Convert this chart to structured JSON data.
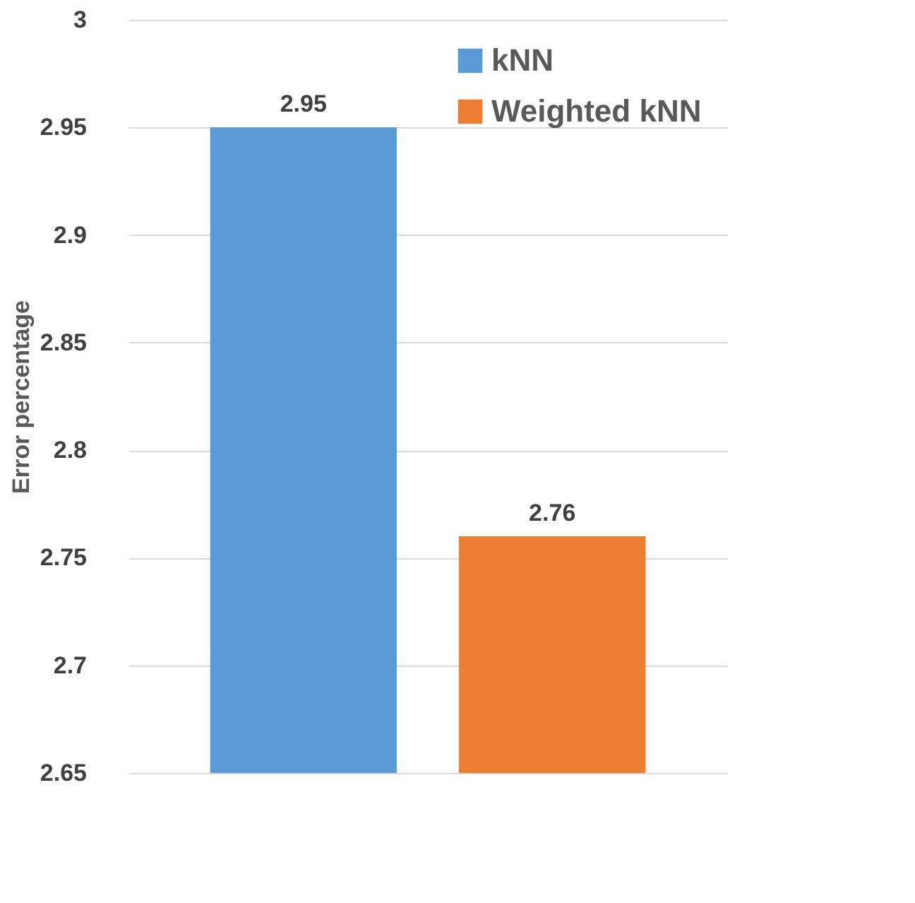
{
  "chart_data": {
    "type": "bar",
    "ylabel": "Error percentage",
    "categories": [
      null
    ],
    "series": [
      {
        "name": "kNN",
        "color": "#5b9bd5",
        "values": [
          2.95
        ]
      },
      {
        "name": "Weighted kNN",
        "color": "#ed7d31",
        "values": [
          2.76
        ]
      }
    ],
    "ylim": [
      2.65,
      3
    ],
    "yticks": [
      2.65,
      2.7,
      2.75,
      2.8,
      2.85,
      2.9,
      2.95,
      3
    ],
    "grid": "y",
    "legend": "top right",
    "data_labels": true
  }
}
